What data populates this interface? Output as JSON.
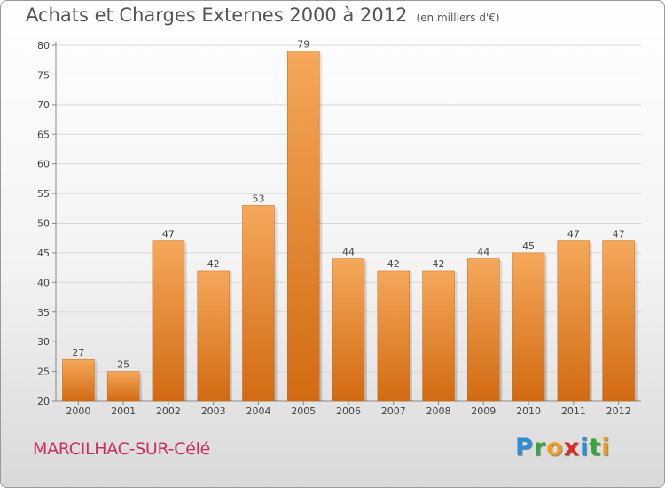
{
  "header": {
    "title": "Achats et Charges Externes 2000 à 2012",
    "subtitle": "(en milliers d'€)"
  },
  "footer": {
    "town": "MARCILHAC-SUR-Célé",
    "logo_text": "Proxiti",
    "logo_letters": [
      {
        "ch": "P",
        "color": "#2a8fd6"
      },
      {
        "ch": "r",
        "color": "#35a83c"
      },
      {
        "ch": "o",
        "color": "#f29b1d"
      },
      {
        "ch": "x",
        "color": "#e02a2a"
      },
      {
        "ch": "i",
        "color": "#2a8fd6"
      },
      {
        "ch": "t",
        "color": "#35a83c"
      },
      {
        "ch": "i",
        "color": "#f29b1d"
      }
    ]
  },
  "chart_data": {
    "type": "bar",
    "title": "Achats et Charges Externes 2000 à 2012",
    "subtitle": "(en milliers d'€)",
    "categories": [
      "2000",
      "2001",
      "2002",
      "2003",
      "2004",
      "2005",
      "2006",
      "2007",
      "2008",
      "2009",
      "2010",
      "2011",
      "2012"
    ],
    "values": [
      27,
      25,
      47,
      42,
      53,
      79,
      44,
      42,
      42,
      44,
      45,
      47,
      47
    ],
    "ylim": [
      20,
      80
    ],
    "yticks": [
      20,
      25,
      30,
      35,
      40,
      45,
      50,
      55,
      60,
      65,
      70,
      75,
      80
    ],
    "grid": true,
    "bar_color_top": "#f5a85a",
    "bar_color_bottom": "#d26a12",
    "xlabel": "",
    "ylabel": ""
  }
}
